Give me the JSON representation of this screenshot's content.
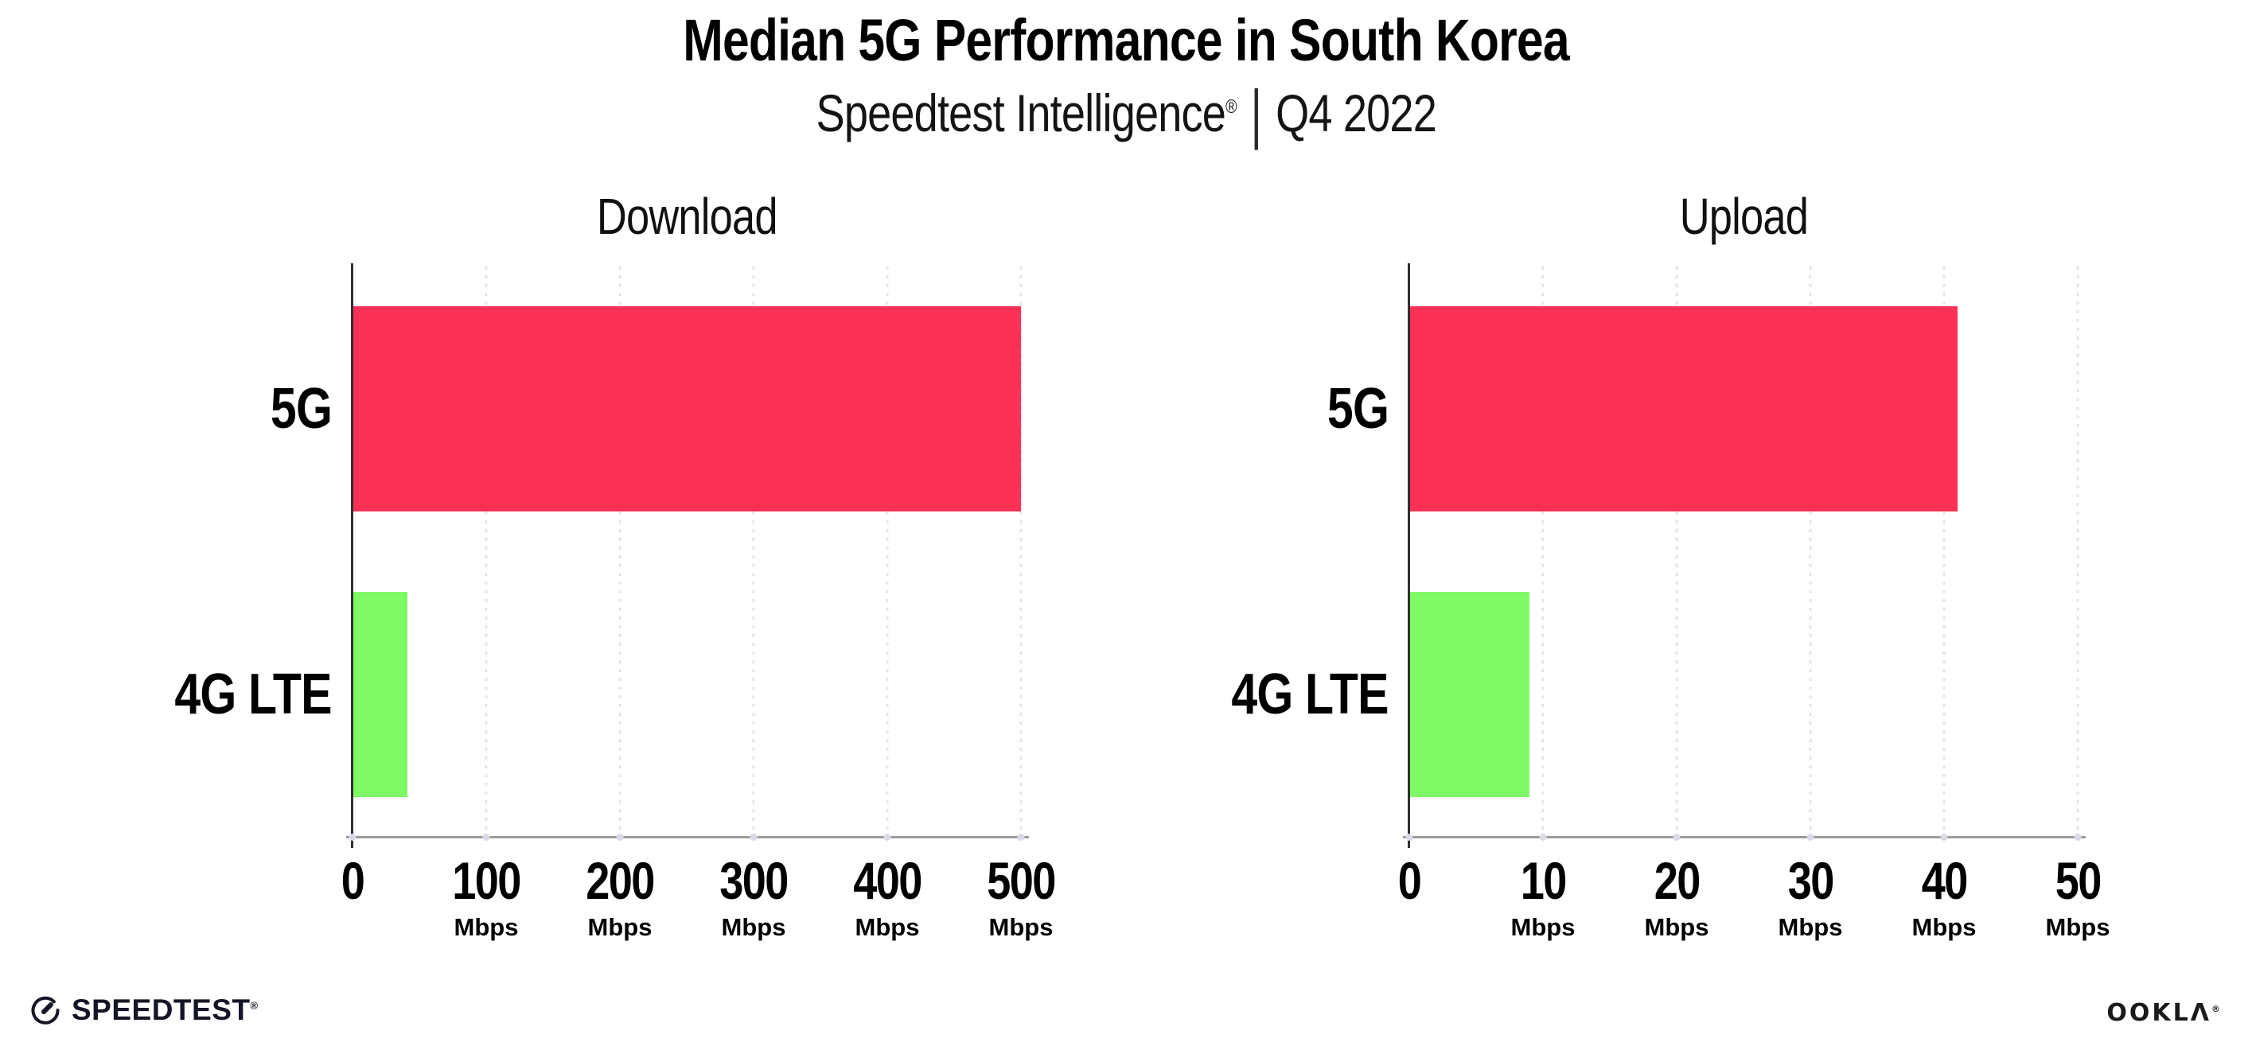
{
  "header": {
    "title": "Median 5G Performance in South Korea",
    "subtitle_brand": "Speedtest Intelligence",
    "reg_mark": "®",
    "subtitle_separator": "|",
    "subtitle_period": "Q4 2022"
  },
  "chart_data": [
    {
      "type": "bar",
      "orientation": "horizontal",
      "title": "Download",
      "categories": [
        "5G",
        "4G LTE"
      ],
      "values": [
        500,
        41
      ],
      "value_unit": "Mbps",
      "xlim": [
        0,
        500
      ],
      "xticks": [
        0,
        100,
        200,
        300,
        400,
        500
      ],
      "tick_unit_label": "Mbps",
      "bar_colors": [
        "#fb3155",
        "#7dfa64"
      ],
      "xlabel": "",
      "ylabel": "",
      "grid": "dotted-vertical",
      "legend": "none"
    },
    {
      "type": "bar",
      "orientation": "horizontal",
      "title": "Upload",
      "categories": [
        "5G",
        "4G LTE"
      ],
      "values": [
        41,
        9
      ],
      "value_unit": "Mbps",
      "xlim": [
        0,
        50
      ],
      "xticks": [
        0,
        10,
        20,
        30,
        40,
        50
      ],
      "tick_unit_label": "Mbps",
      "bar_colors": [
        "#fb3155",
        "#7dfa64"
      ],
      "xlabel": "",
      "ylabel": "",
      "grid": "dotted-vertical",
      "legend": "none"
    }
  ],
  "colors": {
    "bar_5g": "#fb3155",
    "bar_4g_lte": "#7dfa64",
    "gridline": "#e4e4ee",
    "axis_line": "#9b9b9b",
    "spine": "#2f2f2f",
    "text": "#000000"
  },
  "footer": {
    "speedtest_text": "SPEEDTEST",
    "speedtest_reg": "®",
    "ookla_text": "OOKLΛ",
    "ookla_reg": "®"
  }
}
